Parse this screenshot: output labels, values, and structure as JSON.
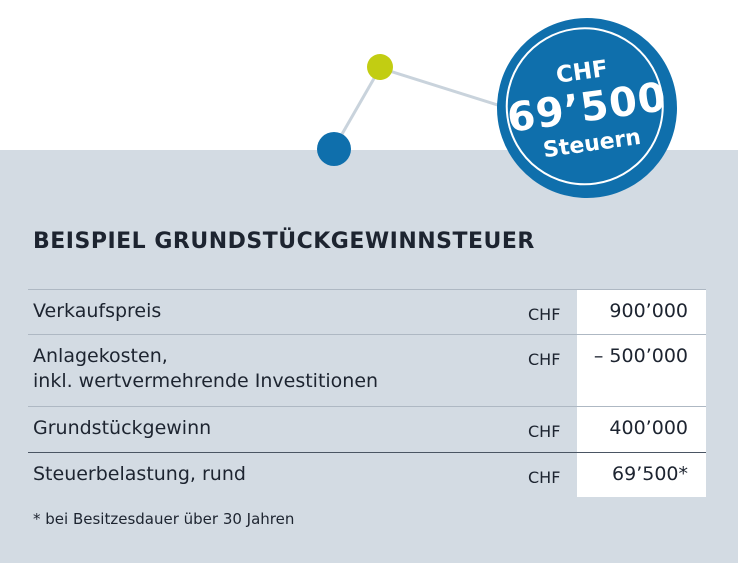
{
  "badge": {
    "currency": "CHF",
    "amount": "69’500",
    "label": "Steuern"
  },
  "title": "BEISPIEL GRUNDSTÜCKGEWINNSTEUER",
  "rows": [
    {
      "label_line1": "Verkaufspreis",
      "label_line2": "",
      "currency": "CHF",
      "value": "900’000"
    },
    {
      "label_line1": "Anlagekosten,",
      "label_line2": "inkl. wertvermehrende Investitionen",
      "currency": "CHF",
      "value": "– 500’000"
    },
    {
      "label_line1": "Grundstückgewinn",
      "label_line2": "",
      "currency": "CHF",
      "value": "400’000"
    },
    {
      "label_line1": "Steuerbelastung, rund",
      "label_line2": "",
      "currency": "CHF",
      "value": "69’500*"
    }
  ],
  "footnote": "* bei Besitzesdauer über 30 Jahren",
  "colors": {
    "panel": "#d3dbe3",
    "badge": "#0f6fac",
    "dot_blue": "#0f6fac",
    "dot_lime": "#c2cd12",
    "text": "#1d2430"
  }
}
